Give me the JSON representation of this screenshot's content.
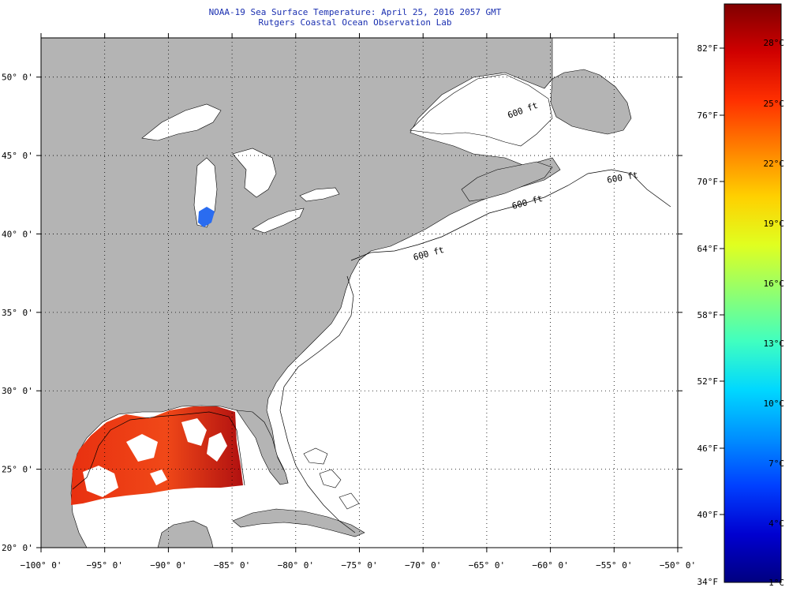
{
  "title": {
    "line1": "NOAA-19 Sea Surface Temperature:  April 25, 2016 2057 GMT",
    "line2": "Rutgers Coastal Ocean Observation Lab"
  },
  "map": {
    "lon_range": [
      -100,
      -50
    ],
    "lat_range": [
      20,
      52.5
    ],
    "lon_ticks": [
      -100,
      -95,
      -90,
      -85,
      -80,
      -75,
      -70,
      -65,
      -60,
      -55,
      -50
    ],
    "lat_ticks": [
      20,
      25,
      30,
      35,
      40,
      45,
      50
    ],
    "lon_labels": [
      "−100° 0'",
      "−95° 0'",
      "−90° 0'",
      "−85° 0'",
      "−80° 0'",
      "−75° 0'",
      "−70° 0'",
      "−65° 0'",
      "−60° 0'",
      "−55° 0'",
      "−50° 0'"
    ],
    "lat_labels": [
      "20° 0'",
      "25° 0'",
      "30° 0'",
      "35° 0'",
      "40° 0'",
      "45° 0'",
      "50° 0'"
    ],
    "land_color": "#b4b4b4",
    "water_nodata_color": "#ffffff",
    "isobath_labels": [
      "600 ft",
      "600 ft",
      "600 ft",
      "600 ft"
    ]
  },
  "colorbar": {
    "fahrenheit_labels": [
      "82°F",
      "76°F",
      "70°F",
      "64°F",
      "58°F",
      "52°F",
      "46°F",
      "40°F",
      "34°F"
    ],
    "celsius_labels": [
      "28°C",
      "25°C",
      "22°C",
      "19°C",
      "16°C",
      "13°C",
      "10°C",
      "7°C",
      "4°C",
      "1°C"
    ],
    "colors": [
      "#000080",
      "#0000d0",
      "#0040ff",
      "#0090ff",
      "#00d8ff",
      "#40ffc0",
      "#90ff70",
      "#e0ff20",
      "#ffd000",
      "#ff8000",
      "#ff3000",
      "#d00000",
      "#800000"
    ]
  }
}
